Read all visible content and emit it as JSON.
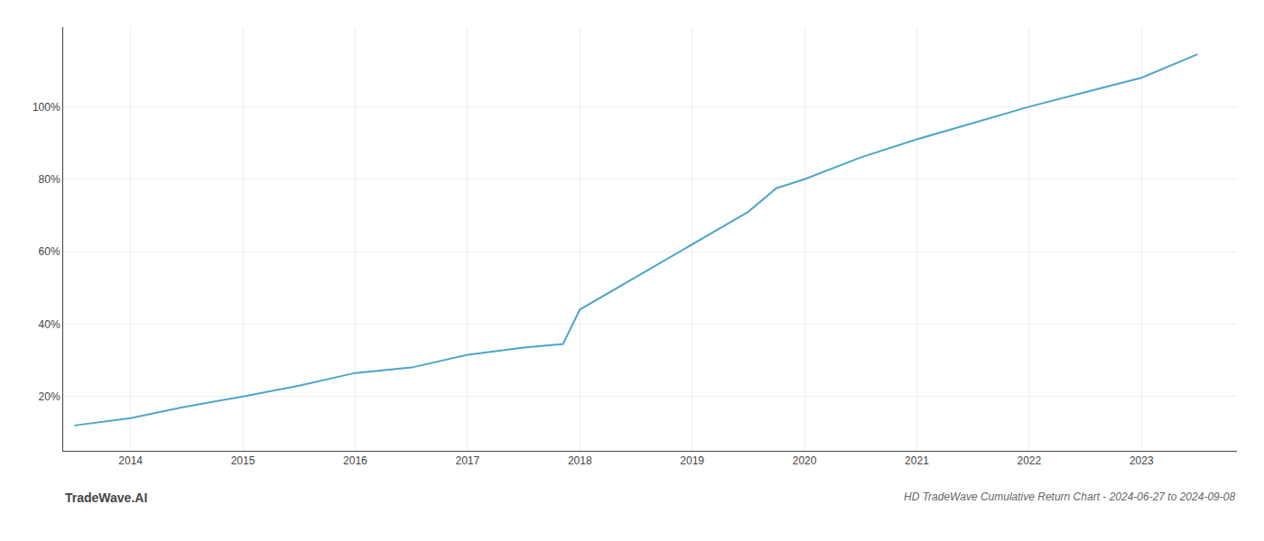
{
  "chart_data": {
    "type": "line",
    "title": "HD TradeWave Cumulative Return Chart - 2024-06-27 to 2024-09-08",
    "annotations": [
      "TradeWave.AI"
    ],
    "x": [
      2013.5,
      2014.0,
      2014.46,
      2015.0,
      2015.5,
      2016.0,
      2016.5,
      2017.0,
      2017.5,
      2017.85,
      2018.0,
      2018.5,
      2019.0,
      2019.5,
      2019.75,
      2020.0,
      2020.5,
      2021.0,
      2021.5,
      2022.0,
      2022.5,
      2023.0,
      2023.5
    ],
    "values": [
      0.12,
      0.14,
      0.17,
      0.2,
      0.23,
      0.265,
      0.28,
      0.315,
      0.335,
      0.345,
      0.44,
      0.53,
      0.62,
      0.71,
      0.775,
      0.8,
      0.86,
      0.91,
      0.955,
      1.0,
      1.04,
      1.08,
      1.145
    ],
    "color": "#4da6c8",
    "xlim": [
      2013.4,
      2023.85
    ],
    "xticks": [
      2014,
      2015,
      2016,
      2017,
      2018,
      2019,
      2020,
      2021,
      2022,
      2023
    ],
    "ylim": [
      0.05,
      1.22
    ],
    "yticks": [
      {
        "value": 0.2,
        "label": "20%"
      },
      {
        "value": 0.4,
        "label": "40%"
      },
      {
        "value": 0.6,
        "label": "60%"
      },
      {
        "value": 0.8,
        "label": "80%"
      },
      {
        "value": 1.0,
        "label": "100%"
      }
    ],
    "grid": true
  }
}
